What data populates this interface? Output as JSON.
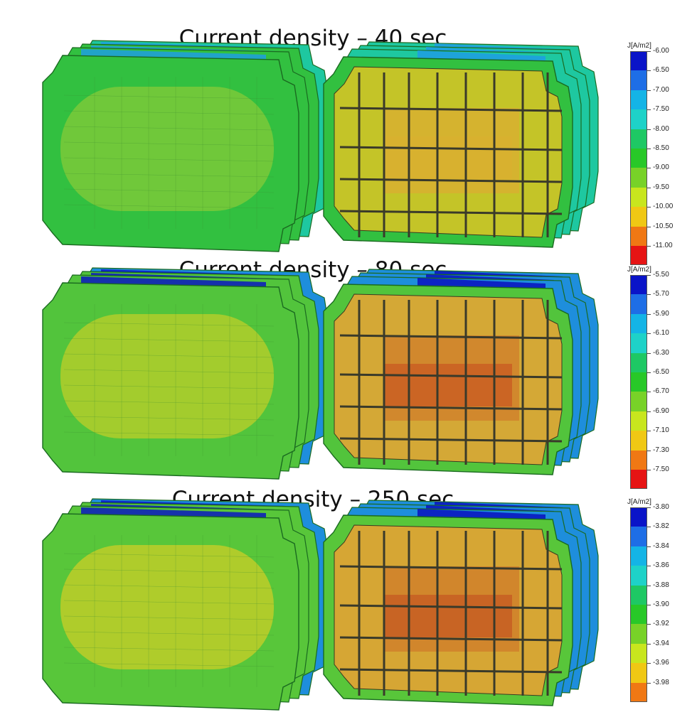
{
  "panels": [
    {
      "title": "Current density – 40 sec",
      "legend": {
        "title": "J[A/m2]",
        "levels": [
          "-6.00",
          "-6.50",
          "-7.00",
          "-7.50",
          "-8.00",
          "-8.50",
          "-9.00",
          "-9.50",
          "-10.00",
          "-10.50",
          "-11.00"
        ],
        "colors": [
          "#0a14c8",
          "#1e6ee6",
          "#14b4e6",
          "#1ed2c8",
          "#1ec864",
          "#28c828",
          "#78d228",
          "#c8e61e",
          "#f0c814",
          "#f07814",
          "#e61414"
        ]
      },
      "front_outer": "#32c040",
      "front_inner": "#74c83a",
      "top_band": "#1ec8a0",
      "top_hot": "#1e9ee0",
      "core_mid": "#c4c428",
      "core_hot": "#d8b030",
      "cell_peak": "#d8b030"
    },
    {
      "title": "Current density – 80 sec",
      "legend": {
        "title": "J[A/m2]",
        "levels": [
          "-5.50",
          "-5.70",
          "-5.90",
          "-6.10",
          "-6.30",
          "-6.50",
          "-6.70",
          "-6.90",
          "-7.10",
          "-7.30",
          "-7.50"
        ],
        "colors": [
          "#0a14c8",
          "#1e6ee6",
          "#14b4e6",
          "#1ed2c8",
          "#1ec864",
          "#28c828",
          "#78d228",
          "#c8e61e",
          "#f0c814",
          "#f07814",
          "#e61414"
        ]
      },
      "front_outer": "#52c43c",
      "front_inner": "#a8cc2c",
      "top_band": "#1e8edc",
      "top_hot": "#0a18c0",
      "core_mid": "#d4a836",
      "core_hot": "#d0822c",
      "cell_peak": "#c85a22"
    },
    {
      "title": "Current density – 250 sec",
      "legend": {
        "title": "J[A/m2]",
        "levels": [
          "-3.80",
          "-3.82",
          "-3.84",
          "-3.86",
          "-3.88",
          "-3.90",
          "-3.92",
          "-3.94",
          "-3.96",
          "-3.98"
        ],
        "colors": [
          "#0a14c8",
          "#1e6ee6",
          "#14b4e6",
          "#1ed2c8",
          "#1ec864",
          "#28c828",
          "#78d228",
          "#c8e61e",
          "#f0c814",
          "#f07814"
        ]
      },
      "front_outer": "#58c63a",
      "front_inner": "#b4cc2a",
      "top_band": "#1e8edc",
      "top_hot": "#0a18c0",
      "core_mid": "#d6a634",
      "core_hot": "#d0802c",
      "cell_peak": "#c45822"
    }
  ]
}
